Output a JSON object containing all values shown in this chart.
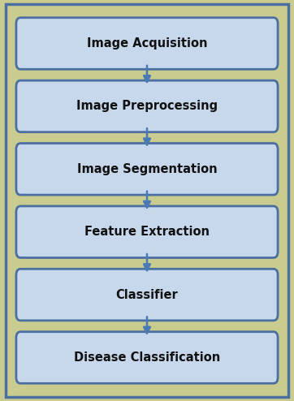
{
  "background_color": "#c9cc8e",
  "outer_border_color": "#4a6fa0",
  "box_fill_color": "#c8d8ec",
  "box_edge_color": "#4a6fa0",
  "arrow_color": "#4a7ab5",
  "text_color": "#111111",
  "steps": [
    "Image Acquisition",
    "Image Preprocessing",
    "Image Segmentation",
    "Feature Extraction",
    "Classifier",
    "Disease Classification"
  ],
  "fig_width": 3.62,
  "fig_height": 4.94,
  "dpi": 100,
  "font_size": 10.5,
  "font_weight": "bold",
  "font_family": "DejaVu Sans"
}
